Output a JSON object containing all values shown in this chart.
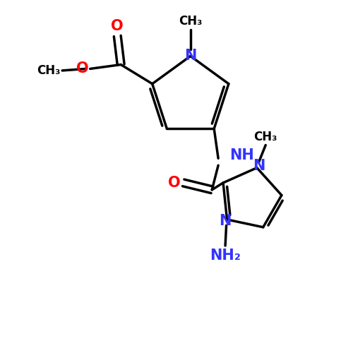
{
  "background_color": "#ffffff",
  "bond_color": "#000000",
  "nitrogen_color": "#3333ff",
  "oxygen_color": "#ff0000",
  "font_size_atom": 15,
  "line_width": 2.5,
  "fig_width": 5.0,
  "fig_height": 5.0,
  "dpi": 100,
  "xlim": [
    0,
    10
  ],
  "ylim": [
    0,
    10
  ]
}
